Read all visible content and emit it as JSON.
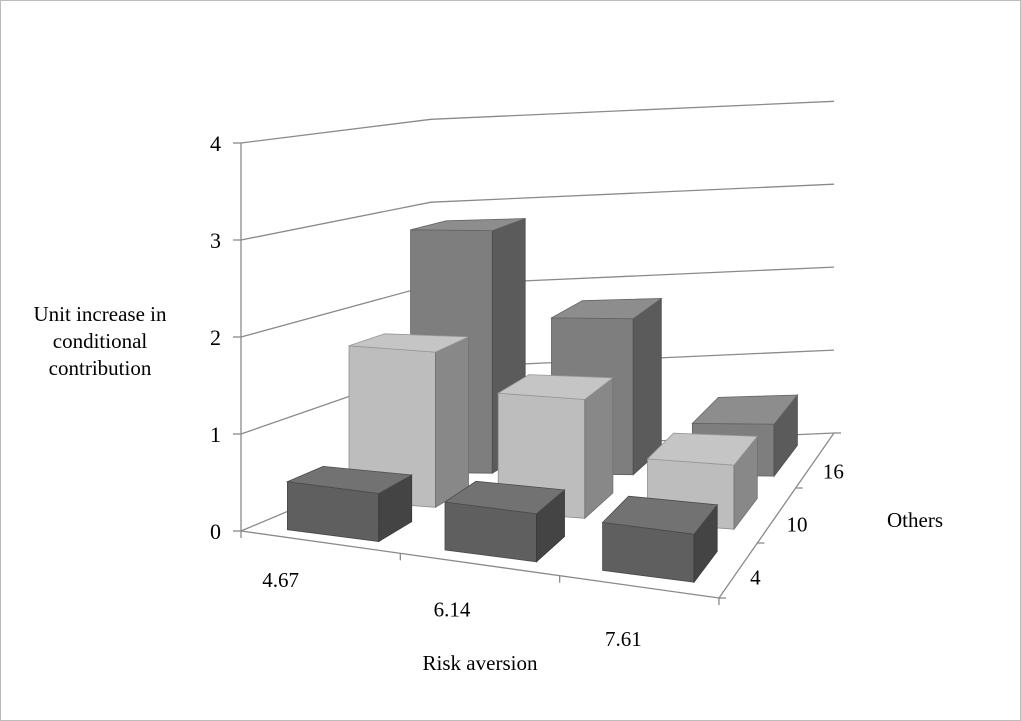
{
  "chart_data": {
    "type": "bar",
    "variant": "3d-column",
    "title": "",
    "xlabel": "Risk aversion",
    "ylabel_lines": [
      "Unit increase in",
      "conditional",
      "contribution"
    ],
    "zlabel": "Others",
    "categories": [
      "4.67",
      "6.14",
      "7.61"
    ],
    "depth_categories": [
      "4",
      "10",
      "16"
    ],
    "yticks": [
      "0",
      "1",
      "2",
      "3",
      "4"
    ],
    "ylim": [
      0,
      4
    ],
    "grid": true,
    "legend": "none",
    "series": [
      {
        "values": [
          0.5,
          0.5,
          0.5
        ],
        "color": "#5f5f5f"
      },
      {
        "values": [
          1.7,
          1.3,
          0.7
        ],
        "color": "#bdbdbd"
      },
      {
        "values": [
          2.8,
          1.8,
          0.6
        ],
        "color": "#7e7e7e"
      }
    ]
  }
}
